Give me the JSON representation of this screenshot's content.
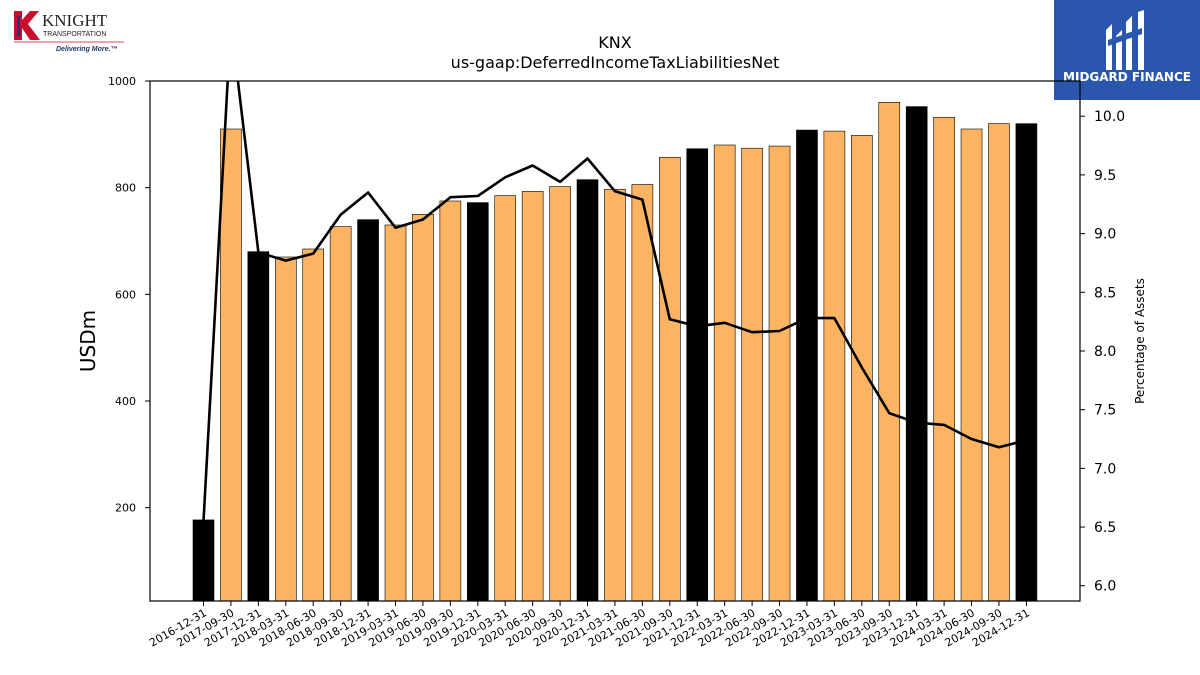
{
  "logos": {
    "left": {
      "name": "KNIGHT",
      "sub": "TRANSPORTATION",
      "tagline": "Delivering More.™"
    },
    "right": {
      "name": "MIDGARD FINANCE"
    }
  },
  "chart_data": {
    "type": "bar",
    "title": "KNX",
    "subtitle": "us-gaap:DeferredIncomeTaxLiabilitiesNet",
    "ylabel": "USDm",
    "ylabel_right": "Percentage of Assets",
    "ylim": [
      25,
      1000
    ],
    "ylim_right": [
      5.87,
      10.3
    ],
    "yticks": [
      200,
      400,
      600,
      800,
      1000
    ],
    "yticks_right": [
      6.0,
      6.5,
      7.0,
      7.5,
      8.0,
      8.5,
      9.0,
      9.5,
      10.0
    ],
    "categories": [
      "2016-12-31",
      "2017-09-30",
      "2017-12-31",
      "2018-03-31",
      "2018-06-30",
      "2018-09-30",
      "2018-12-31",
      "2019-03-31",
      "2019-06-30",
      "2019-09-30",
      "2019-12-31",
      "2020-03-31",
      "2020-06-30",
      "2020-09-30",
      "2020-12-31",
      "2021-03-31",
      "2021-06-30",
      "2021-09-30",
      "2021-12-31",
      "2022-03-31",
      "2022-06-30",
      "2022-09-30",
      "2022-12-31",
      "2023-03-31",
      "2023-06-30",
      "2023-09-30",
      "2023-12-31",
      "2024-03-31",
      "2024-06-30",
      "2024-09-30",
      "2024-12-31"
    ],
    "values": [
      177,
      910,
      680,
      670,
      685,
      727,
      740,
      730,
      750,
      775,
      772,
      785,
      793,
      802,
      815,
      797,
      806,
      857,
      873,
      880,
      874,
      878,
      908,
      906,
      898,
      960,
      952,
      932,
      910,
      920,
      920
    ],
    "annual_flags": [
      1,
      0,
      1,
      0,
      0,
      0,
      1,
      0,
      0,
      0,
      1,
      0,
      0,
      0,
      1,
      0,
      0,
      0,
      1,
      0,
      0,
      0,
      1,
      0,
      0,
      0,
      1,
      0,
      0,
      0,
      1
    ],
    "colors": {
      "annual": "#000000",
      "quarterly": "#fdb462",
      "line": "#000000"
    },
    "line_series": {
      "name": "Percentage of Assets",
      "values": [
        6.55,
        10.8,
        8.84,
        8.77,
        8.83,
        9.16,
        9.35,
        9.05,
        9.12,
        9.31,
        9.32,
        9.48,
        9.58,
        9.44,
        9.64,
        9.36,
        9.29,
        8.27,
        8.21,
        8.24,
        8.16,
        8.17,
        8.28,
        8.28,
        7.86,
        7.47,
        7.39,
        7.37,
        7.25,
        7.18,
        7.24
      ]
    },
    "grid": false
  }
}
